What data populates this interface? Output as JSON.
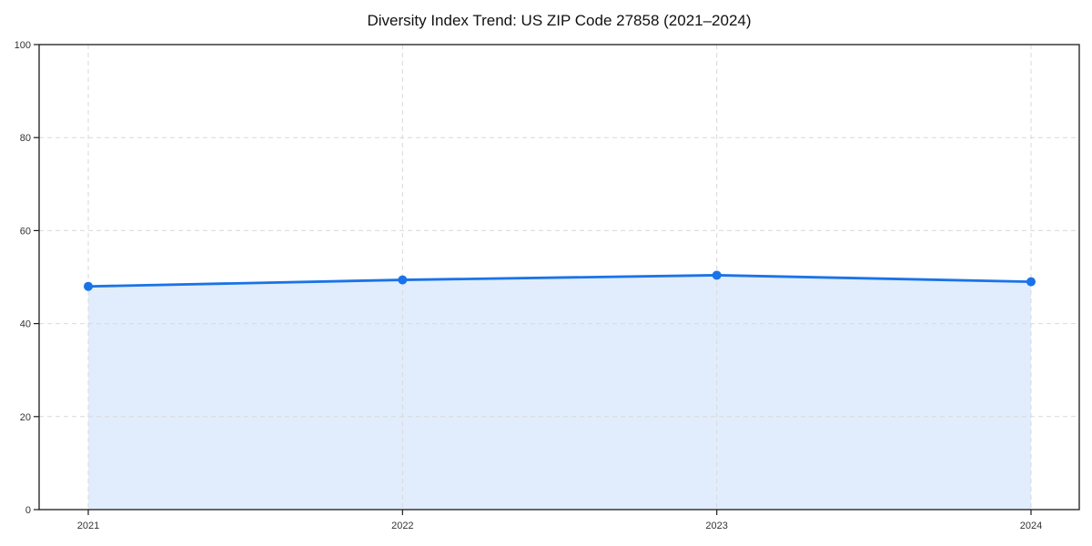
{
  "chart_data": {
    "type": "line",
    "title": "Diversity Index Trend: US ZIP Code 27858 (2021–2024)",
    "x": [
      2021,
      2022,
      2023,
      2024
    ],
    "series": [
      {
        "name": "Diversity Index",
        "values": [
          48.0,
          49.4,
          50.4,
          49.0
        ]
      }
    ],
    "xlabel": "",
    "ylabel": "",
    "ylim": [
      0,
      100
    ],
    "yticks": [
      0,
      20,
      40,
      60,
      80,
      100
    ],
    "grid": true,
    "grid_style": "dashed",
    "legend": "none",
    "marker": "circle",
    "area_fill": true,
    "colors": {
      "line": "#1a73e8",
      "marker": "#1a73e8",
      "fill": "#1a73e8",
      "fill_opacity": 0.13,
      "grid": "#d9d9d9",
      "spine": "#1a1a1a",
      "tick_label": "#333333",
      "title": "#111111",
      "background": "#ffffff"
    }
  }
}
